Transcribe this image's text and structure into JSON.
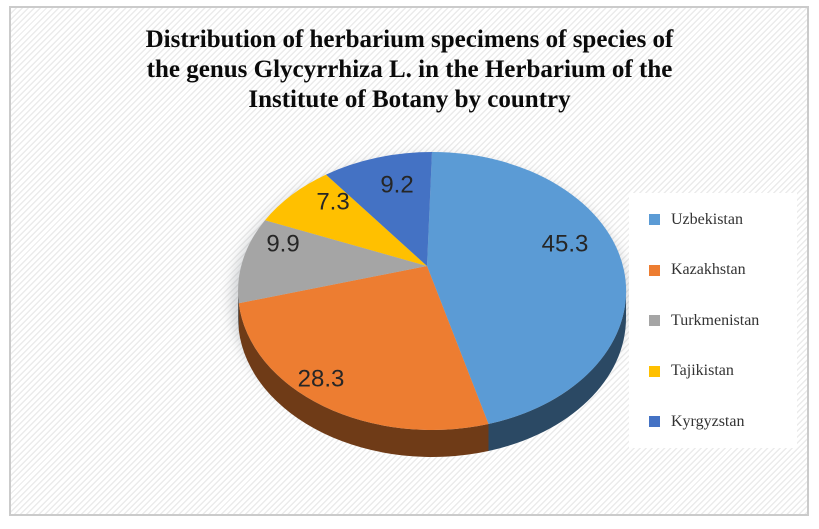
{
  "window": {
    "background_color": "#ffffff",
    "frame_border_color": "#cbcbcb"
  },
  "title_lines": [
    "Distribution of herbarium specimens of species of",
    "the genus Glycyrrhiza L. in the Herbarium of the",
    "Institute of Botany by country"
  ],
  "chart_data": {
    "type": "pie",
    "style": "3d-pie",
    "title": "Distribution of herbarium specimens of species of the genus Glycyrrhiza L. in the Herbarium of the Institute of Botany by country",
    "categories": [
      "Uzbekistan",
      "Kazakhstan",
      "Turkmenistan",
      "Tajikistan",
      "Kyrgyzstan"
    ],
    "values": [
      45.3,
      28.3,
      9.9,
      7.3,
      9.2
    ],
    "data_labels": [
      "45.3",
      "28.3",
      "9.9",
      "7.3",
      "9.2"
    ],
    "colors": [
      "#5B9BD5",
      "#ED7D31",
      "#A5A5A5",
      "#FFC000",
      "#4472C4"
    ],
    "start_angle_deg": 0,
    "direction": "clockwise",
    "legend_position": "right"
  }
}
